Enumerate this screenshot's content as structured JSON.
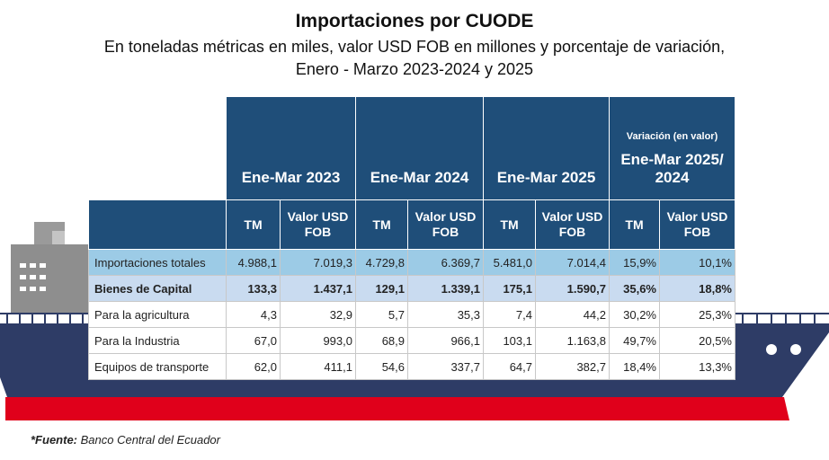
{
  "title": "Importaciones por CUODE",
  "subtitle_line1": "En toneladas métricas en miles, valor USD FOB en millones y porcentaje de variación,",
  "subtitle_line2": "Enero - Marzo 2023-2024 y 2025",
  "headers": {
    "period1": "Ene-Mar 2023",
    "period2": "Ene-Mar 2024",
    "period3": "Ene-Mar 2025",
    "variation_top": "Variación (en valor)",
    "variation_period": "Ene-Mar 2025/ 2024",
    "tm": "TM",
    "valor": "Valor USD FOB"
  },
  "rows": [
    {
      "label": "Importaciones totales",
      "values": [
        "4.988,1",
        "7.019,3",
        "4.729,8",
        "6.369,7",
        "5.481,0",
        "7.014,4",
        "15,9%",
        "10,1%"
      ]
    },
    {
      "label": "Bienes de Capital",
      "values": [
        "133,3",
        "1.437,1",
        "129,1",
        "1.339,1",
        "175,1",
        "1.590,7",
        "35,6%",
        "18,8%"
      ]
    },
    {
      "label": "Para la agricultura",
      "values": [
        "4,3",
        "32,9",
        "5,7",
        "35,3",
        "7,4",
        "44,2",
        "30,2%",
        "25,3%"
      ]
    },
    {
      "label": "Para la Industria",
      "values": [
        "67,0",
        "993,0",
        "68,9",
        "966,1",
        "103,1",
        "1.163,8",
        "49,7%",
        "20,5%"
      ]
    },
    {
      "label": "Equipos de transporte",
      "values": [
        "62,0",
        "411,1",
        "54,6",
        "337,7",
        "64,7",
        "382,7",
        "18,4%",
        "13,3%"
      ]
    }
  ],
  "source_label": "*Fuente:",
  "source_text": " Banco Central del Ecuador",
  "colors": {
    "header_blue": "#1f4e79",
    "total_row": "#9ccbe6",
    "capital_row": "#c9dbf0",
    "ship_hull": "#2e3c66",
    "ship_stripe": "#e0001b",
    "tower_grey": "#8e8e8e"
  }
}
